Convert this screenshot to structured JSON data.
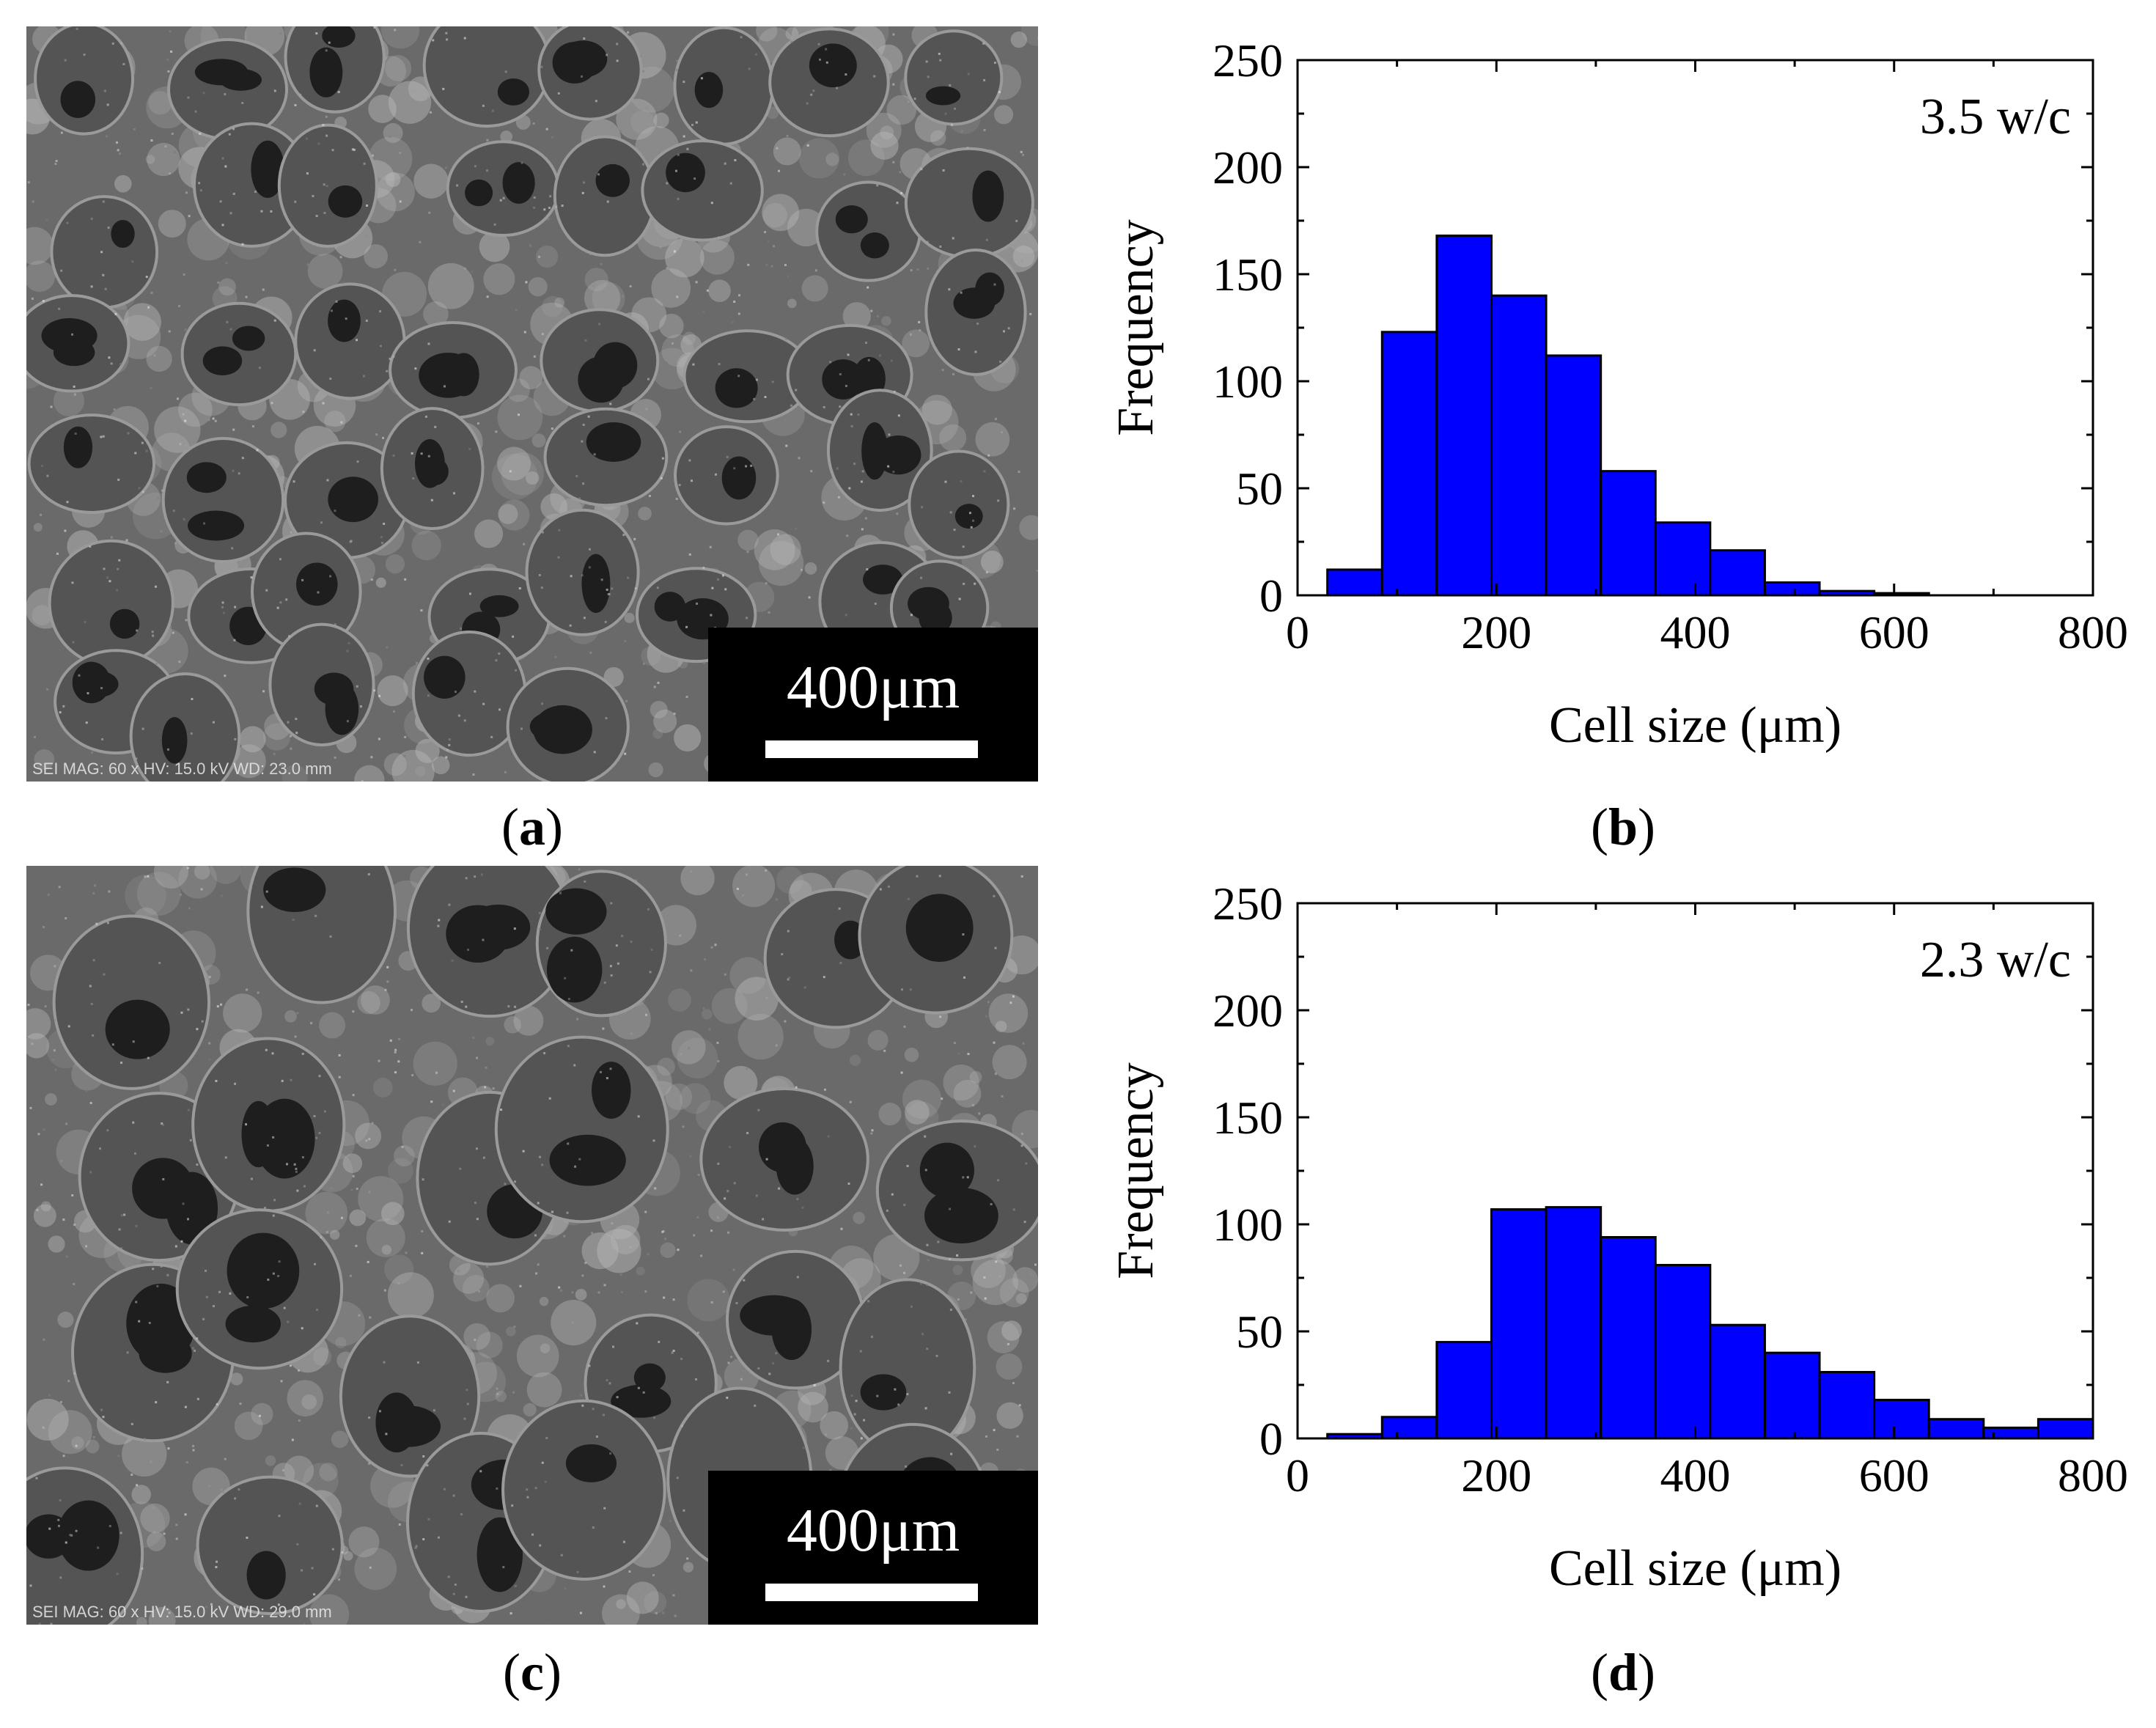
{
  "panels": {
    "a": {
      "label": "a",
      "scale_bar": "400μm",
      "footer": "SEI  MAG: 60 x  HV: 15.0 kV  WD: 23.0 mm"
    },
    "b": {
      "label": "b"
    },
    "c": {
      "label": "c",
      "scale_bar": "400μm",
      "footer": "SEI  MAG: 60 x  HV: 15.0 kV  WD: 29.0 mm"
    },
    "d": {
      "label": "d"
    }
  },
  "colors": {
    "bar_fill": "#0000ff",
    "sem_gray": "#5a5a5a"
  },
  "chart_data": [
    {
      "type": "bar",
      "panel": "b",
      "annotation": "3.5 w/c",
      "xlabel": "Cell size (μm)",
      "ylabel": "Frequency",
      "xlim": [
        0,
        800
      ],
      "ylim": [
        0,
        250
      ],
      "xticks": [
        0,
        200,
        400,
        600,
        800
      ],
      "yticks": [
        0,
        50,
        100,
        150,
        200,
        250
      ],
      "bin_width": 55,
      "bin_starts": [
        30,
        85,
        140,
        195,
        250,
        305,
        360,
        415,
        470,
        525,
        580
      ],
      "values": [
        12,
        123,
        168,
        140,
        112,
        58,
        34,
        21,
        6,
        2,
        1
      ]
    },
    {
      "type": "bar",
      "panel": "d",
      "annotation": "2.3 w/c",
      "xlabel": "Cell size (μm)",
      "ylabel": "Frequency",
      "xlim": [
        0,
        800
      ],
      "ylim": [
        0,
        250
      ],
      "xticks": [
        0,
        200,
        400,
        600,
        800
      ],
      "yticks": [
        0,
        50,
        100,
        150,
        200,
        250
      ],
      "bin_width": 55,
      "bin_starts": [
        30,
        85,
        140,
        195,
        250,
        305,
        360,
        415,
        470,
        525,
        580,
        635,
        690,
        745
      ],
      "values": [
        2,
        10,
        45,
        107,
        108,
        94,
        81,
        53,
        40,
        31,
        18,
        9,
        5,
        9
      ]
    }
  ]
}
